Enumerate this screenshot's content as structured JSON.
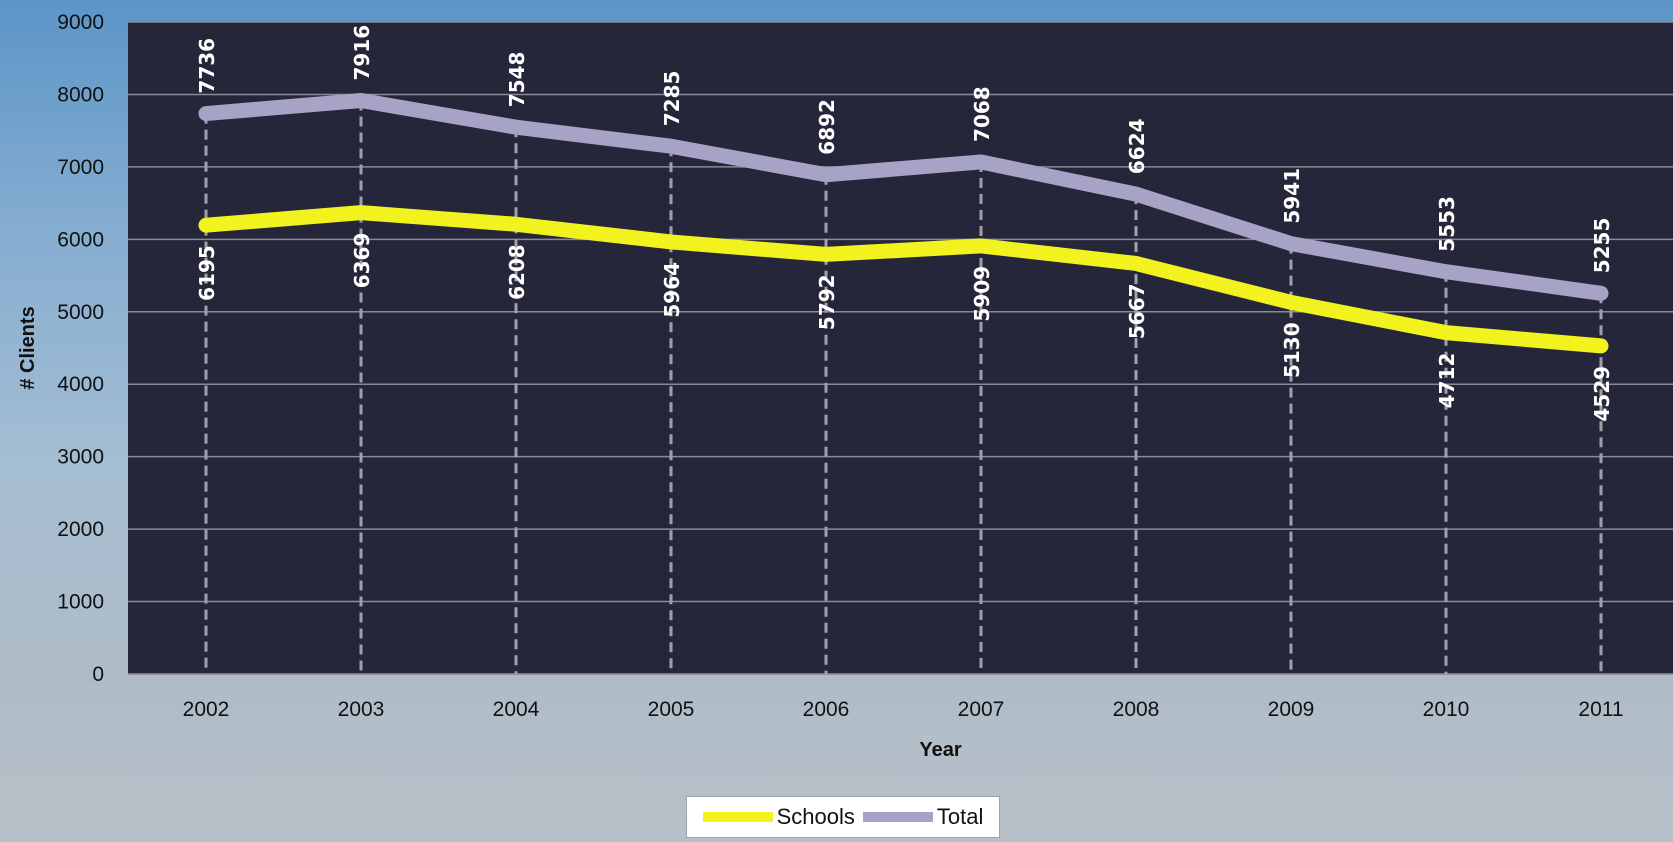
{
  "chart_data": {
    "type": "line",
    "categories": [
      "2002",
      "2003",
      "2004",
      "2005",
      "2006",
      "2007",
      "2008",
      "2009",
      "2010",
      "2011"
    ],
    "series": [
      {
        "name": "Schools",
        "color": "#f2f21f",
        "values": [
          6195,
          6369,
          6208,
          5964,
          5792,
          5909,
          5667,
          5130,
          4712,
          4529
        ]
      },
      {
        "name": "Total",
        "color": "#a7a3c6",
        "values": [
          7736,
          7916,
          7548,
          7285,
          6892,
          7068,
          6624,
          5941,
          5553,
          5255
        ]
      }
    ],
    "xlabel": "Year",
    "ylabel": "# Clients",
    "ylim": [
      0,
      9000
    ],
    "yticks": [
      0,
      1000,
      2000,
      3000,
      4000,
      5000,
      6000,
      7000,
      8000,
      9000
    ],
    "grid": true,
    "legend_position": "bottom",
    "plot_background": "#26263a"
  }
}
